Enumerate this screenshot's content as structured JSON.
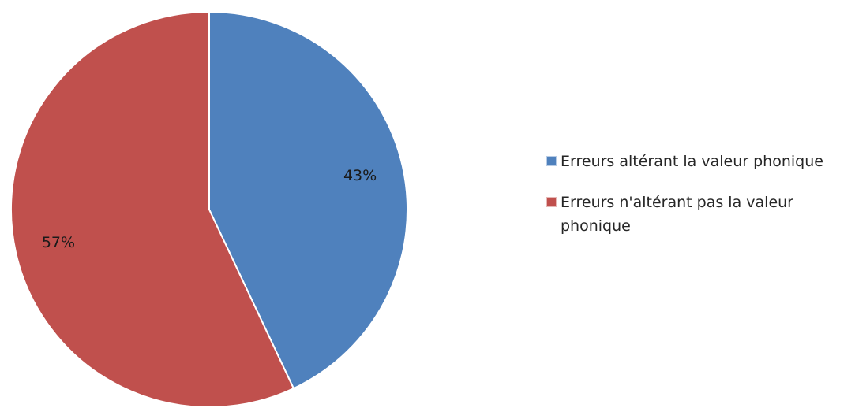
{
  "chart_data": {
    "type": "pie",
    "categories": [
      "Erreurs altérant la valeur phonique",
      "Erreurs n'altérant pas la valeur phonique"
    ],
    "values": [
      43,
      57
    ],
    "data_labels": [
      "43%",
      "57%"
    ],
    "colors": [
      "#4F81BD",
      "#C0504D"
    ],
    "start_angle_deg": 0,
    "direction": "clockwise",
    "legend_position": "right",
    "title": ""
  }
}
